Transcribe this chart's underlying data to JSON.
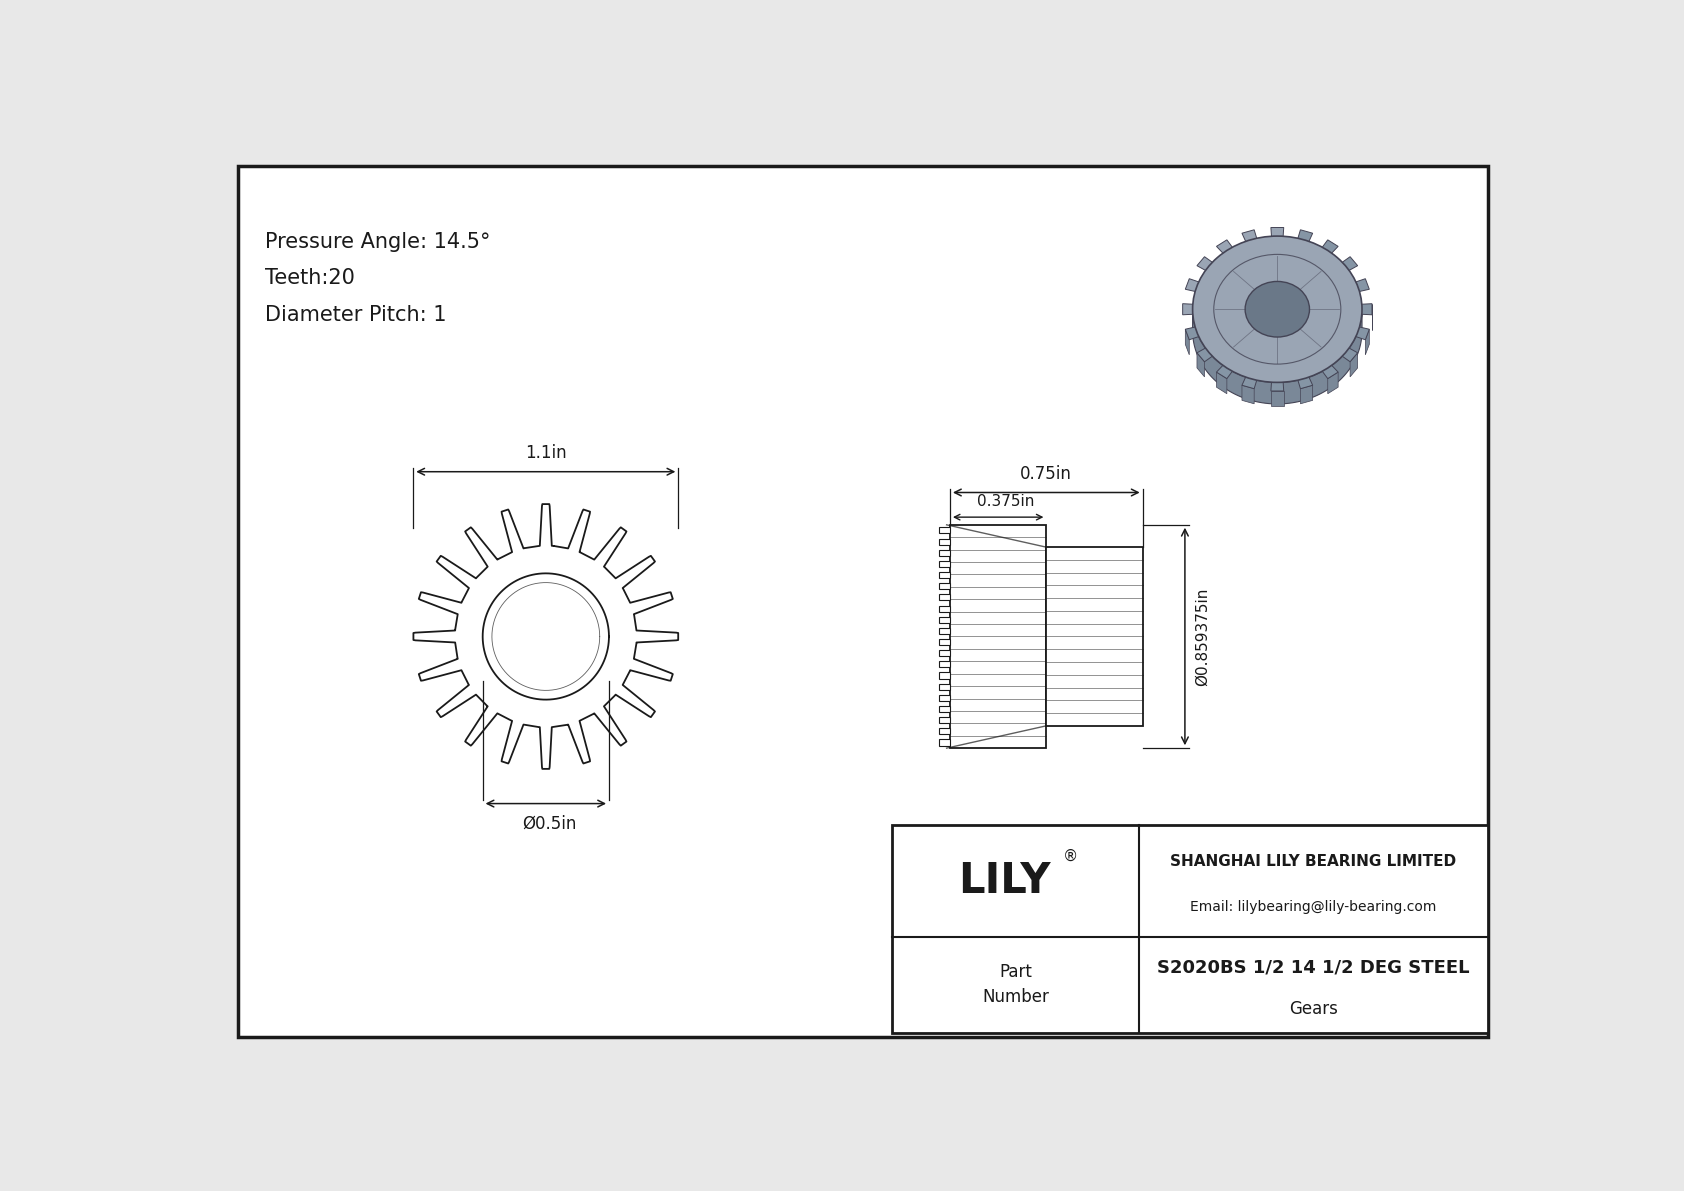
{
  "bg_color": "#e8e8e8",
  "line_color": "#1a1a1a",
  "border_color": "#1a1a1a",
  "white": "#ffffff",
  "title_specs": [
    "Pressure Angle: 14.5°",
    "Teeth:20",
    "Diameter Pitch: 1"
  ],
  "dim_1_1in": "1.1in",
  "dim_075in": "0.75in",
  "dim_0375in": "0.375in",
  "dim_05in": "Ø0.5in",
  "dim_bore": "Ø0.859375in",
  "n_teeth": 20,
  "logo_text": "LILY",
  "logo_sup": "®",
  "company": "SHANGHAI LILY BEARING LIMITED",
  "email": "Email: lilybearing@lily-bearing.com",
  "part_label": "Part\nNumber",
  "part_number": "S2020BS 1/2 14 1/2 DEG STEEL",
  "part_type": "Gears",
  "gear3d_color_body": "#9aa5b4",
  "gear3d_color_tooth": "#8595a5",
  "gear3d_color_side": "#7a8898",
  "gear3d_color_bore": "#6a7888",
  "gear3d_color_edge": "#444455"
}
